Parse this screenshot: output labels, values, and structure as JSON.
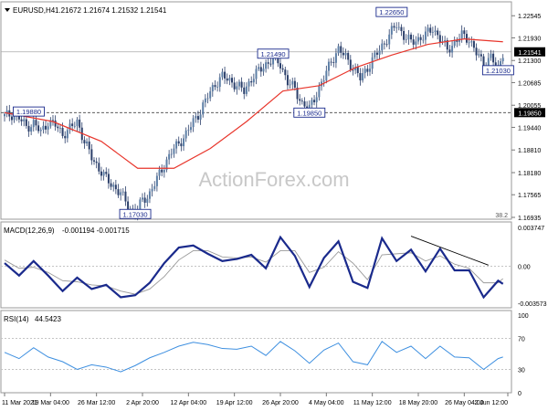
{
  "chart_data": [
    {
      "type": "candlestick",
      "symbol": "EURUSD,H4",
      "ohlc": [
        "1.21672",
        "1.21674",
        "1.21532",
        "1.21541"
      ],
      "last_price": "1.21541",
      "overlay": {
        "name": "moving-average",
        "color": "#e8352b"
      },
      "ylim": [
        1.16935,
        1.2278
      ],
      "y_ticks": [
        "1.22545",
        "1.21930",
        "1.21300",
        "1.20685",
        "1.20055",
        "1.19440",
        "1.18810",
        "1.18180",
        "1.17565",
        "1.16935"
      ],
      "price_points": [
        [
          0,
          1.1975
        ],
        [
          3,
          1.198
        ],
        [
          6,
          1.197
        ],
        [
          9,
          1.1945
        ],
        [
          12,
          1.1955
        ],
        [
          15,
          1.193
        ],
        [
          18,
          1.196
        ],
        [
          21,
          1.195
        ],
        [
          24,
          1.1925
        ],
        [
          27,
          1.194
        ],
        [
          30,
          1.196
        ],
        [
          33,
          1.1905
        ],
        [
          36,
          1.186
        ],
        [
          39,
          1.183
        ],
        [
          42,
          1.18
        ],
        [
          45,
          1.178
        ],
        [
          48,
          1.176
        ],
        [
          51,
          1.1725
        ],
        [
          54,
          1.1705
        ],
        [
          57,
          1.174
        ],
        [
          60,
          1.176
        ],
        [
          63,
          1.18
        ],
        [
          66,
          1.184
        ],
        [
          69,
          1.1875
        ],
        [
          72,
          1.19
        ],
        [
          75,
          1.1925
        ],
        [
          78,
          1.196
        ],
        [
          81,
          1.199
        ],
        [
          84,
          1.203
        ],
        [
          87,
          1.2065
        ],
        [
          90,
          1.2085
        ],
        [
          93,
          1.2075
        ],
        [
          96,
          1.206
        ],
        [
          99,
          1.2045
        ],
        [
          102,
          1.208
        ],
        [
          105,
          1.21
        ],
        [
          108,
          1.212
        ],
        [
          111,
          1.2135
        ],
        [
          114,
          1.212
        ],
        [
          117,
          1.207
        ],
        [
          120,
          1.205
        ],
        [
          123,
          1.201
        ],
        [
          126,
          1.1995
        ],
        [
          129,
          1.204
        ],
        [
          132,
          1.208
        ],
        [
          135,
          1.213
        ],
        [
          138,
          1.216
        ],
        [
          141,
          1.214
        ],
        [
          144,
          1.211
        ],
        [
          147,
          1.208
        ],
        [
          150,
          1.211
        ],
        [
          153,
          1.214
        ],
        [
          156,
          1.217
        ],
        [
          159,
          1.22
        ],
        [
          162,
          1.223
        ],
        [
          165,
          1.22
        ],
        [
          168,
          1.218
        ],
        [
          171,
          1.219
        ],
        [
          174,
          1.22
        ],
        [
          177,
          1.222
        ],
        [
          180,
          1.219
        ],
        [
          183,
          1.216
        ],
        [
          186,
          1.218
        ],
        [
          189,
          1.22
        ],
        [
          192,
          1.219
        ],
        [
          195,
          1.215
        ],
        [
          198,
          1.212
        ],
        [
          201,
          1.214
        ],
        [
          204,
          1.2105
        ],
        [
          206,
          1.2154
        ]
      ],
      "ma_points": [
        [
          0,
          1.1985
        ],
        [
          20,
          1.196
        ],
        [
          40,
          1.1905
        ],
        [
          55,
          1.183
        ],
        [
          70,
          1.183
        ],
        [
          85,
          1.1885
        ],
        [
          100,
          1.196
        ],
        [
          115,
          1.2045
        ],
        [
          130,
          1.206
        ],
        [
          145,
          1.211
        ],
        [
          160,
          1.2145
        ],
        [
          175,
          1.2175
        ],
        [
          190,
          1.219
        ],
        [
          206,
          1.2182
        ]
      ],
      "annotations": [
        {
          "label": "1.19880",
          "x": 10,
          "y": 1.1988
        },
        {
          "label": "1.17030",
          "x": 54,
          "y": 1.1703
        },
        {
          "label": "1.21490",
          "x": 111,
          "y": 1.2149
        },
        {
          "label": "1.19850",
          "x": 126,
          "y": 1.1985
        },
        {
          "label": "1.22650",
          "x": 160,
          "y": 1.2265
        },
        {
          "label": "1.21030",
          "x": 204,
          "y": 1.2103
        }
      ],
      "hlines": [
        {
          "value": 1.21541,
          "style": "solid",
          "badge": "1.21541"
        },
        {
          "value": 1.1985,
          "style": "dashed",
          "badge": "1.19850"
        }
      ],
      "corner_label": "38.2",
      "watermark": "ActionForex.com"
    },
    {
      "type": "line",
      "header": "MACD(12,26,9)",
      "values_text": "-0.001194 -0.001715",
      "ylim": [
        -0.003573,
        0.003747
      ],
      "y_ticks": [
        "0.003747",
        "0.00",
        "-0.003573"
      ],
      "x": [
        0,
        6,
        12,
        18,
        24,
        30,
        36,
        42,
        48,
        54,
        60,
        66,
        72,
        78,
        84,
        90,
        96,
        102,
        108,
        114,
        120,
        126,
        132,
        138,
        144,
        150,
        156,
        162,
        168,
        174,
        180,
        186,
        192,
        198,
        204,
        206
      ],
      "series": [
        {
          "role": "macd",
          "values": [
            0.0003,
            -0.0009,
            0.0005,
            -0.0009,
            -0.0024,
            -0.0011,
            -0.0022,
            -0.0018,
            -0.003,
            -0.0028,
            -0.0016,
            0.0003,
            0.0018,
            0.002,
            0.0012,
            0.0005,
            0.0007,
            0.0011,
            -0.0002,
            0.0028,
            0.001,
            -0.002,
            0.0008,
            0.0024,
            -0.0015,
            -0.0021,
            0.0027,
            0.0005,
            0.0016,
            -0.0005,
            0.0017,
            -0.0004,
            -0.0004,
            -0.003,
            -0.0014,
            -0.0017
          ]
        },
        {
          "role": "signal",
          "values": [
            0.0006,
            -0.0002,
            -0.0001,
            -0.0006,
            -0.0014,
            -0.0015,
            -0.0018,
            -0.0019,
            -0.0024,
            -0.0027,
            -0.0022,
            -0.001,
            0.0006,
            0.0015,
            0.0015,
            0.0009,
            0.0008,
            0.0009,
            0.0004,
            0.0015,
            0.0015,
            -0.0006,
            -0.0001,
            0.0014,
            0.0003,
            -0.0013,
            0.0011,
            0.0012,
            0.0013,
            0.0005,
            0.001,
            0.0002,
            -0.0002,
            -0.0016,
            -0.0016,
            -0.0012
          ]
        }
      ],
      "trendline": [
        [
          168,
          0.0029
        ],
        [
          200,
          0.0001
        ]
      ]
    },
    {
      "type": "line",
      "header": "RSI(14)",
      "value_text": "44.5423",
      "ylim": [
        0,
        100
      ],
      "y_ticks": [
        "100",
        "70",
        "30",
        "0"
      ],
      "levels": [
        70,
        30
      ],
      "x": [
        0,
        6,
        12,
        18,
        24,
        30,
        36,
        42,
        48,
        54,
        60,
        66,
        72,
        78,
        84,
        90,
        96,
        102,
        108,
        114,
        120,
        126,
        132,
        138,
        144,
        150,
        156,
        162,
        168,
        174,
        180,
        186,
        192,
        198,
        204,
        206
      ],
      "values": [
        52,
        44,
        58,
        46,
        40,
        30,
        36,
        33,
        27,
        35,
        45,
        52,
        60,
        65,
        62,
        57,
        56,
        60,
        48,
        66,
        54,
        38,
        55,
        64,
        40,
        36,
        66,
        52,
        60,
        44,
        60,
        46,
        45,
        30,
        44,
        46
      ]
    }
  ],
  "x_axis": {
    "labels": [
      "11 Mar 2021",
      "19 Mar 04:00",
      "26 Mar 12:00",
      "2 Apr 20:00",
      "12 Apr 04:00",
      "19 Apr 12:00",
      "26 Apr 20:00",
      "4 May 04:00",
      "11 May 12:00",
      "18 May 20:00",
      "26 May 04:00",
      "2 Jun 12:00"
    ],
    "positions": [
      0,
      19,
      38,
      57,
      76,
      95,
      114,
      133,
      152,
      171,
      190,
      208
    ]
  }
}
